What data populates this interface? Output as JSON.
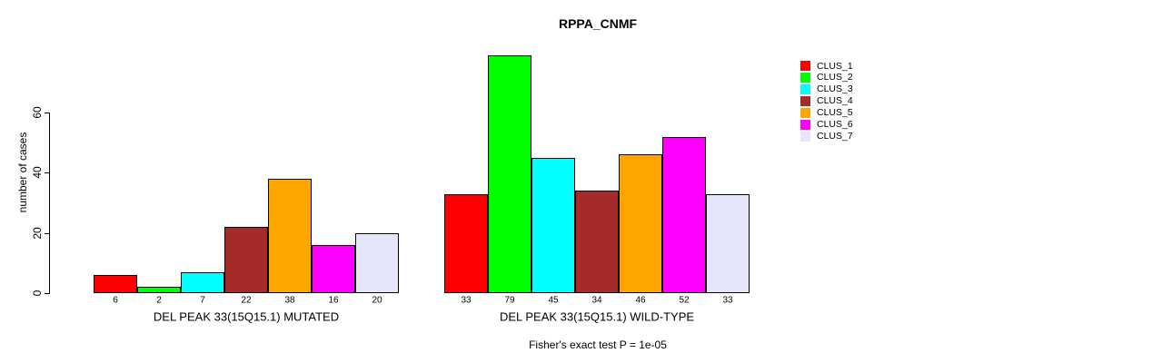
{
  "chart_data": {
    "type": "bar",
    "title": "RPPA_CNMF",
    "ylabel": "number of cases",
    "xlabel": "",
    "yticks": [
      0,
      20,
      40,
      60
    ],
    "ylim": [
      0,
      80
    ],
    "grid": false,
    "legend_position": "right",
    "categories": [
      "DEL PEAK 33(15Q15.1) MUTATED",
      "DEL PEAK 33(15Q15.1) WILD-TYPE"
    ],
    "series": [
      {
        "name": "CLUS_1",
        "color": "#FF0000",
        "values": [
          6,
          33
        ]
      },
      {
        "name": "CLUS_2",
        "color": "#00FF00",
        "values": [
          2,
          79
        ]
      },
      {
        "name": "CLUS_3",
        "color": "#00FFFF",
        "values": [
          7,
          45
        ]
      },
      {
        "name": "CLUS_4",
        "color": "#A52A2A",
        "values": [
          22,
          34
        ]
      },
      {
        "name": "CLUS_5",
        "color": "#FFA500",
        "values": [
          38,
          46
        ]
      },
      {
        "name": "CLUS_6",
        "color": "#FF00FF",
        "values": [
          16,
          52
        ]
      },
      {
        "name": "CLUS_7",
        "color": "#E6E6FA",
        "values": [
          20,
          33
        ]
      }
    ],
    "bar_value_labels_shown": true,
    "annotation": "Fisher's exact test P = 1e-05"
  }
}
